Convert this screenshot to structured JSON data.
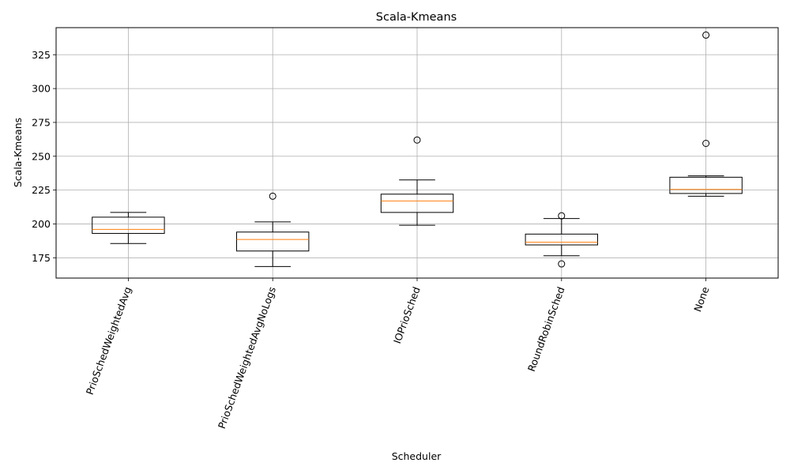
{
  "chart_data": {
    "type": "box",
    "title": "Scala-Kmeans",
    "xlabel": "Scheduler",
    "ylabel": "Scala-Kmeans",
    "ylim": [
      160,
      345
    ],
    "yticks": [
      175,
      200,
      225,
      250,
      275,
      300,
      325
    ],
    "grid": true,
    "categories": [
      "PrioSchedWeightedAvg",
      "PrioSchedWeightedAvgNoLogs",
      "IOPrioSched",
      "RoundRobinSched",
      "None"
    ],
    "boxes": [
      {
        "category": "PrioSchedWeightedAvg",
        "whisker_low": 185.5,
        "q1": 193,
        "median": 196,
        "q3": 205,
        "whisker_high": 208.5,
        "outliers": []
      },
      {
        "category": "PrioSchedWeightedAvgNoLogs",
        "whisker_low": 168.5,
        "q1": 180,
        "median": 188.5,
        "q3": 194,
        "whisker_high": 201.5,
        "outliers": [
          220.5
        ]
      },
      {
        "category": "IOPrioSched",
        "whisker_low": 199,
        "q1": 208.5,
        "median": 217,
        "q3": 222,
        "whisker_high": 232.5,
        "outliers": [
          262
        ]
      },
      {
        "category": "RoundRobinSched",
        "whisker_low": 176.5,
        "q1": 184.5,
        "median": 186.5,
        "q3": 192.5,
        "whisker_high": 204,
        "outliers": [
          206,
          170.5
        ]
      },
      {
        "category": "None",
        "whisker_low": 220.5,
        "q1": 222.5,
        "median": 225.5,
        "q3": 234.5,
        "whisker_high": 235.5,
        "outliers": [
          259.5,
          339.5
        ]
      }
    ],
    "colors": {
      "box": "#000000",
      "median": "#ff7f0e",
      "grid": "#b0b0b0"
    }
  }
}
